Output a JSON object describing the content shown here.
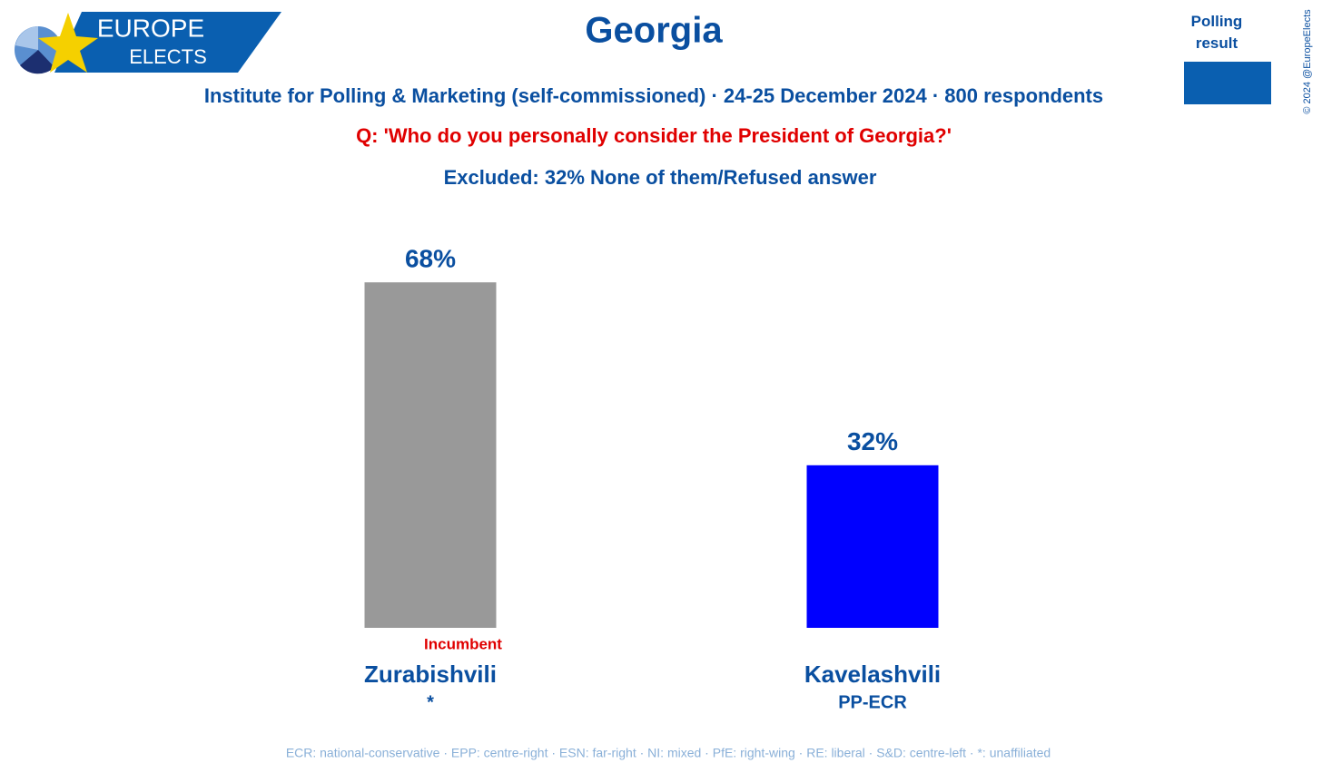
{
  "chart_data": {
    "type": "bar",
    "title": "Georgia",
    "subtitle": "Institute for Polling & Marketing (self-commissioned) · 24-25 December 2024 · 800 respondents",
    "question": "Q: 'Who do you personally consider the President of Georgia?'",
    "excluded": "Excluded: 32% None of them/Refused answer",
    "categories": [
      "Zurabishvili",
      "Kavelashvili"
    ],
    "parties": [
      "*",
      "PP-ECR"
    ],
    "annotations": [
      "Incumbent",
      null
    ],
    "values": [
      68,
      32
    ],
    "value_labels": [
      "68%",
      "32%"
    ],
    "colors": [
      "#999999",
      "#0000ff"
    ],
    "legend": {
      "label": "Polling result",
      "color": "#0a5fb0"
    },
    "footer": "ECR: national-conservative · EPP: centre-right · ESN: far-right · NI: mixed · PfE: right-wing · RE: liberal · S&D: centre-left · *: unaffiliated",
    "logo": [
      "EUROPE",
      "ELECTS"
    ],
    "copyright": "© 2024 @EuropeElects"
  }
}
